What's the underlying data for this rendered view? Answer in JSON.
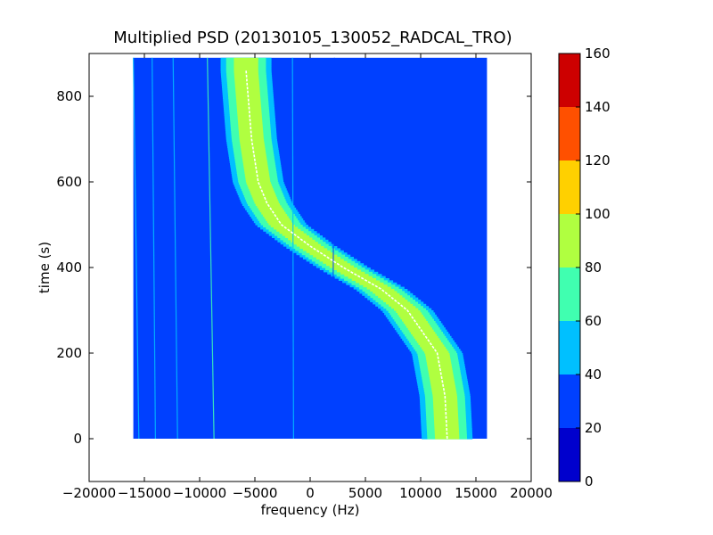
{
  "chart_data": {
    "type": "heatmap",
    "title": "Multiplied PSD (20130105_130052_RADCAL_TRO)",
    "xlabel": "frequency (Hz)",
    "ylabel": "time (s)",
    "xlim": [
      -20000,
      20000
    ],
    "ylim": [
      -100,
      900
    ],
    "x_ticks": [
      -20000,
      -15000,
      -10000,
      -5000,
      0,
      5000,
      10000,
      15000,
      20000
    ],
    "x_tick_labels": [
      "−20000",
      "−15000",
      "−10000",
      "−5000",
      "0",
      "5000",
      "10000",
      "15000",
      "20000"
    ],
    "y_ticks": [
      0,
      200,
      400,
      600,
      800
    ],
    "y_tick_labels": [
      "0",
      "200",
      "400",
      "600",
      "800"
    ],
    "data_extent": {
      "x": [
        -16000,
        16000
      ],
      "y": [
        0,
        890
      ]
    },
    "background_level": 25,
    "signal_track": {
      "description_units": "center frequency (Hz) versus time (s)",
      "points": [
        {
          "t": 0,
          "f": 12400
        },
        {
          "t": 100,
          "f": 12200
        },
        {
          "t": 200,
          "f": 11500
        },
        {
          "t": 300,
          "f": 8800
        },
        {
          "t": 350,
          "f": 6400
        },
        {
          "t": 400,
          "f": 3000
        },
        {
          "t": 450,
          "f": 0
        },
        {
          "t": 500,
          "f": -2600
        },
        {
          "t": 550,
          "f": -3900
        },
        {
          "t": 600,
          "f": -4700
        },
        {
          "t": 700,
          "f": -5300
        },
        {
          "t": 860,
          "f": -5800
        }
      ],
      "peak_level": 95
    },
    "faint_lines_hz": [
      {
        "f0": -15500,
        "f1": -16000,
        "level": 55
      },
      {
        "f0": -14000,
        "f1": -14300,
        "level": 45
      },
      {
        "f0": -12000,
        "f1": -12400,
        "level": 40
      },
      {
        "f0": -8700,
        "f1": -9300,
        "level": 70
      },
      {
        "f0": -1500,
        "f1": -1600,
        "level": 45
      },
      {
        "f0": 2000,
        "f1": 2200,
        "level": 38
      }
    ],
    "colorbar": {
      "levels": [
        0,
        20,
        40,
        60,
        80,
        100,
        120,
        140,
        160
      ],
      "tick_labels": [
        "0",
        "20",
        "40",
        "60",
        "80",
        "100",
        "120",
        "140",
        "160"
      ],
      "colors": [
        "#0000cd",
        "#0040ff",
        "#00c0ff",
        "#40ffb0",
        "#b0ff40",
        "#ffd000",
        "#ff5000",
        "#cd0000"
      ]
    },
    "grid": false,
    "legend": "none"
  }
}
